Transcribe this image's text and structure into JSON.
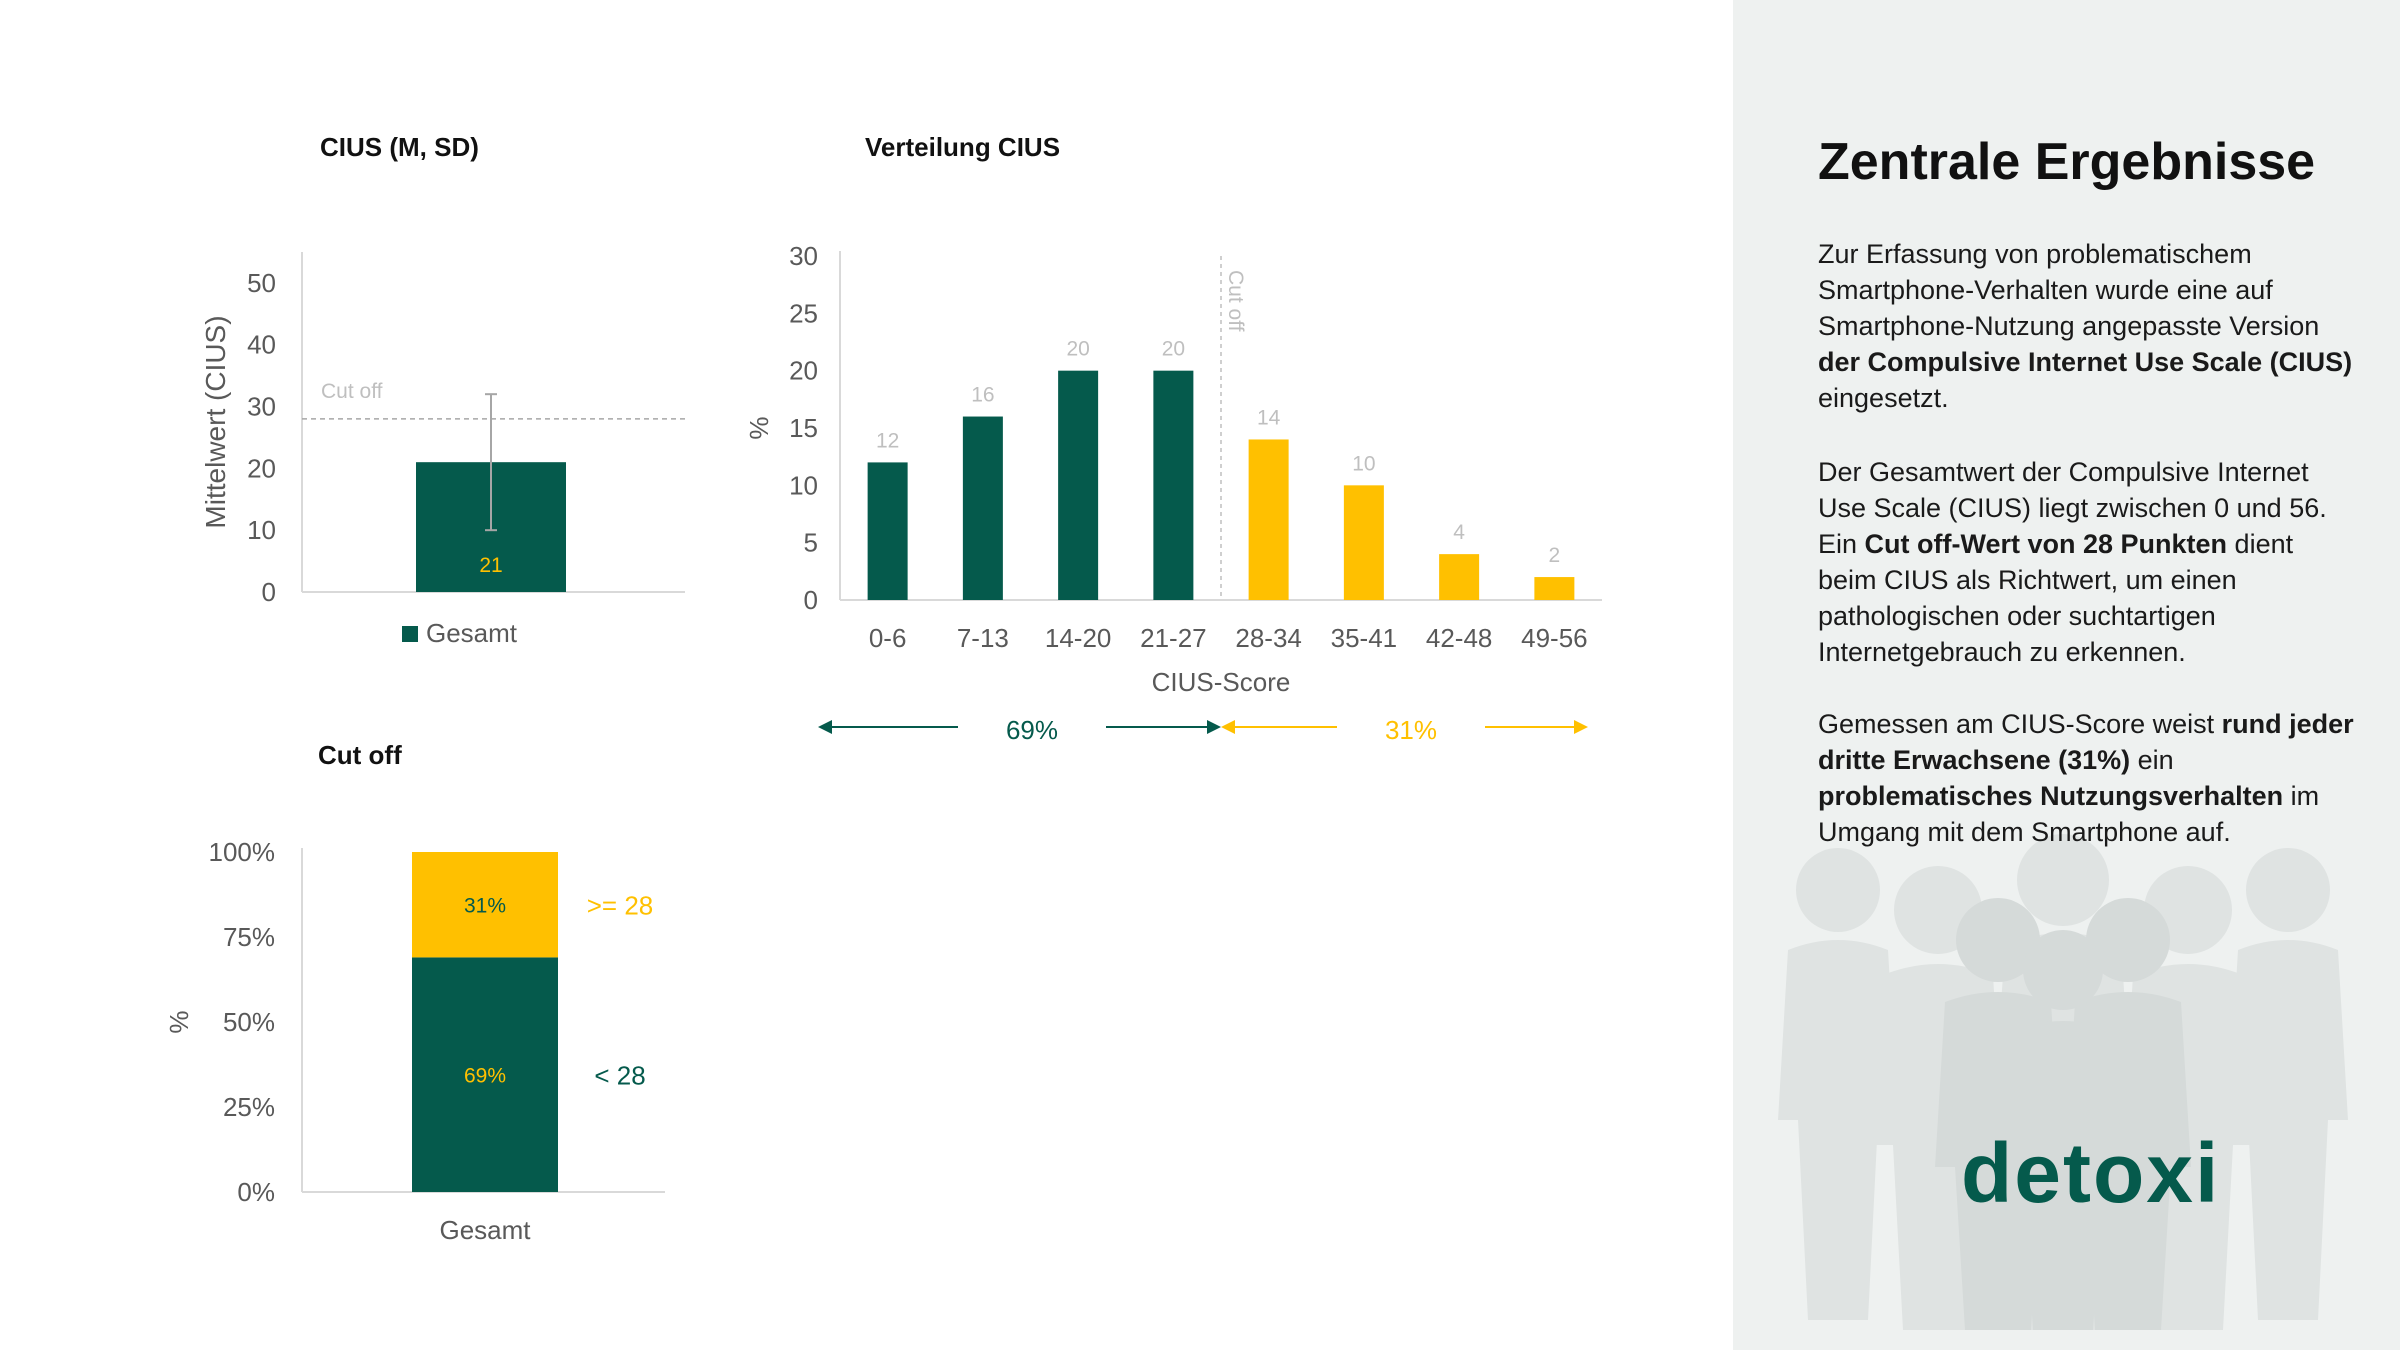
{
  "colors": {
    "green": "#055a4c",
    "yellow": "#ffc000",
    "grey_text": "#595959",
    "light_text": "#bfbfbf",
    "sidebar_bg": "#eef1f0"
  },
  "charts": {
    "mean": {
      "title": "CIUS  (M, SD)"
    },
    "dist": {
      "title": "Verteilung CIUS"
    },
    "cutoff": {
      "title": "Cut off"
    }
  },
  "chart_data": [
    {
      "type": "bar",
      "title": "CIUS  (M, SD)",
      "ylabel": "Mittelwert (CIUS)",
      "categories": [
        "Gesamt"
      ],
      "values": [
        21
      ],
      "error_upper": [
        32
      ],
      "error_lower": [
        10
      ],
      "ylim": [
        0,
        55
      ],
      "yticks": [
        0,
        10,
        20,
        30,
        40,
        50
      ],
      "legend": "Gesamt",
      "legend_position": "bottom",
      "reference_line": {
        "value": 28,
        "label": "Cut off"
      },
      "data_labels": [
        "21"
      ]
    },
    {
      "type": "bar",
      "title": "Verteilung CIUS",
      "xlabel": "CIUS-Score",
      "ylabel": "%",
      "categories": [
        "0-6",
        "7-13",
        "14-20",
        "21-27",
        "28-34",
        "35-41",
        "42-48",
        "49-56"
      ],
      "values": [
        12,
        16,
        20,
        20,
        14,
        10,
        4,
        2
      ],
      "ylim": [
        0,
        30
      ],
      "yticks": [
        0,
        5,
        10,
        15,
        20,
        25,
        30
      ],
      "cutoff_label": "Cut off",
      "groups": [
        {
          "label": "69%",
          "from": "0-6",
          "to": "21-27"
        },
        {
          "label": "31%",
          "from": "28-34",
          "to": "49-56"
        }
      ]
    },
    {
      "type": "bar",
      "stacked": true,
      "title": "Cut off",
      "ylabel": "%",
      "categories": [
        "Gesamt"
      ],
      "series": [
        {
          "name": "< 28",
          "values": [
            69
          ],
          "label": "69%"
        },
        {
          "name": ">= 28",
          "values": [
            31
          ],
          "label": "31%"
        }
      ],
      "ylim": [
        0,
        100
      ],
      "yticks": [
        "0%",
        "25%",
        "50%",
        "75%",
        "100%"
      ]
    }
  ],
  "sidebar": {
    "heading": "Zentrale Ergebnisse",
    "p1": [
      {
        "t": "Zur Erfassung von problematischem Smartphone-Verhalten wurde eine auf Smartphone-Nutzung angepasste Version ",
        "b": false
      },
      {
        "t": "der Compulsive Internet Use Scale (CIUS)",
        "b": true
      },
      {
        "t": " eingesetzt.",
        "b": false
      }
    ],
    "p2": [
      {
        "t": "Der Gesamtwert der Compulsive Internet Use Scale (CIUS) liegt zwischen 0 und 56. Ein ",
        "b": false
      },
      {
        "t": "Cut off-Wert von 28 Punkten",
        "b": true
      },
      {
        "t": " dient beim CIUS als Richtwert, um einen pathologischen oder suchtartigen Internetgebrauch zu erkennen.",
        "b": false
      }
    ],
    "p3": [
      {
        "t": "Gemessen am CIUS-Score weist ",
        "b": false
      },
      {
        "t": "rund jeder dritte Erwachsene (31%)",
        "b": true
      },
      {
        "t": " ein ",
        "b": false
      },
      {
        "t": "problematisches Nutzungsverhalten",
        "b": true
      },
      {
        "t": " im Umgang mit dem Smartphone auf.",
        "b": false
      }
    ],
    "logo_text": "detoxi",
    "illustration_icon": "people-group-icon"
  }
}
